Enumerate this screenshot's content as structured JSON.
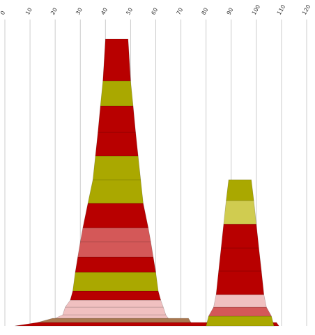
{
  "chart_data": {
    "type": "area",
    "orientation": "stacked-profiles",
    "title": "",
    "xlabel": "",
    "ylabel": "",
    "x_axis": {
      "position": "top",
      "ticks": [
        "0",
        "10",
        "20",
        "30",
        "40",
        "50",
        "60",
        "70",
        "80",
        "90",
        "100",
        "110",
        "120"
      ],
      "range": [
        0,
        120
      ],
      "grid": true
    },
    "colors": {
      "red": "#b80000",
      "olive": "#aaa800",
      "lightolive": "#d0cc50",
      "salmon": "#d45858",
      "pink": "#f0c0c0",
      "brown": "#a87850",
      "gridline": "#cccccc"
    },
    "stacks": [
      {
        "name": "",
        "segments": [
          {
            "color": "red",
            "bottom": [
              4,
              109
            ],
            "top": [
              13,
              108
            ]
          },
          {
            "color": "brown",
            "bottom": [
              13,
              74
            ],
            "top": [
              19,
              73
            ]
          },
          {
            "color": "pink",
            "bottom": [
              20,
              65
            ],
            "top": [
              23,
              64
            ]
          },
          {
            "color": "pink",
            "bottom": [
              23,
              64
            ],
            "top": [
              24,
              63
            ]
          },
          {
            "color": "pink",
            "bottom": [
              24,
              63
            ],
            "top": [
              26,
              62
            ]
          },
          {
            "color": "red",
            "bottom": [
              26,
              62
            ],
            "top": [
              27,
              61
            ]
          },
          {
            "color": "olive",
            "bottom": [
              27,
              61
            ],
            "top": [
              28,
              60
            ]
          },
          {
            "color": "red",
            "bottom": [
              28,
              60
            ],
            "top": [
              29,
              59
            ]
          },
          {
            "color": "salmon",
            "bottom": [
              29,
              59
            ],
            "top": [
              30,
              58
            ]
          },
          {
            "color": "salmon",
            "bottom": [
              30,
              58
            ],
            "top": [
              31,
              57
            ]
          },
          {
            "color": "red",
            "bottom": [
              31,
              57
            ],
            "top": [
              33,
              55
            ]
          },
          {
            "color": "olive",
            "bottom": [
              33,
              55
            ],
            "top": [
              35,
              54
            ]
          },
          {
            "color": "olive",
            "bottom": [
              35,
              54
            ],
            "top": [
              36,
              53
            ]
          },
          {
            "color": "red",
            "bottom": [
              36,
              53
            ],
            "top": [
              37,
              52
            ]
          },
          {
            "color": "red",
            "bottom": [
              37,
              52
            ],
            "top": [
              38,
              51
            ]
          },
          {
            "color": "olive",
            "bottom": [
              38,
              51
            ],
            "top": [
              39,
              50
            ]
          },
          {
            "color": "red",
            "bottom": [
              39,
              50
            ],
            "top": [
              40,
              49
            ]
          }
        ]
      },
      {
        "name": "",
        "segments": [
          {
            "color": "olive",
            "bottom": [
              80,
              107
            ],
            "top": [
              81,
              106
            ]
          },
          {
            "color": "salmon",
            "bottom": [
              81,
              106
            ],
            "top": [
              83,
              104
            ]
          },
          {
            "color": "pink",
            "bottom": [
              83,
              104
            ],
            "top": [
              84,
              103
            ]
          },
          {
            "color": "red",
            "bottom": [
              84,
              103
            ],
            "top": [
              85,
              102
            ]
          },
          {
            "color": "red",
            "bottom": [
              85,
              102
            ],
            "top": [
              86,
              101
            ]
          },
          {
            "color": "red",
            "bottom": [
              86,
              101
            ],
            "top": [
              87,
              100
            ]
          },
          {
            "color": "lightolive",
            "bottom": [
              87,
              100
            ],
            "top": [
              88,
              99
            ]
          },
          {
            "color": "olive",
            "bottom": [
              88,
              99
            ],
            "top": [
              89,
              98
            ]
          }
        ]
      }
    ]
  }
}
